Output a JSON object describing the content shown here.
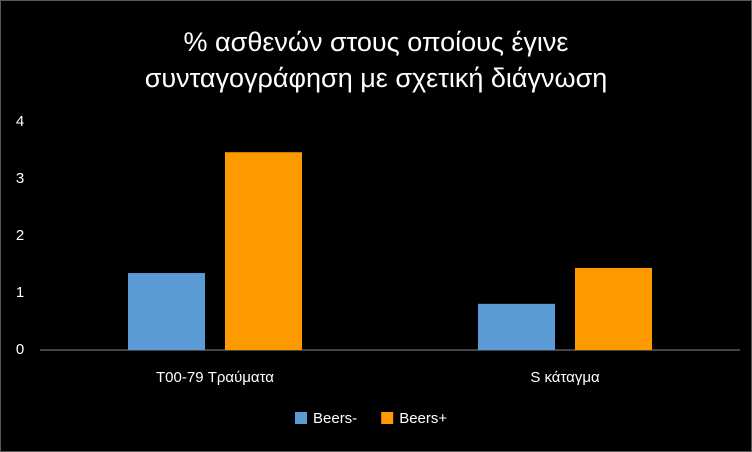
{
  "chart_data": {
    "type": "bar",
    "title": [
      "% ασθενών στους οποίους έγινε",
      "συνταγογράφηση με σχετική διάγνωση"
    ],
    "categories": [
      "T00-79 Τραύματα",
      "S κάταγμα"
    ],
    "series": [
      {
        "name": "Beers-",
        "color": "#5b9bd5",
        "values": [
          1.35,
          0.81
        ]
      },
      {
        "name": "Beers+",
        "color": "#ff9900",
        "values": [
          3.47,
          1.44
        ]
      }
    ],
    "ylim": [
      0,
      4
    ],
    "yticks": [
      0,
      1,
      2,
      3,
      4
    ],
    "grid": false,
    "legend": "bottom"
  }
}
